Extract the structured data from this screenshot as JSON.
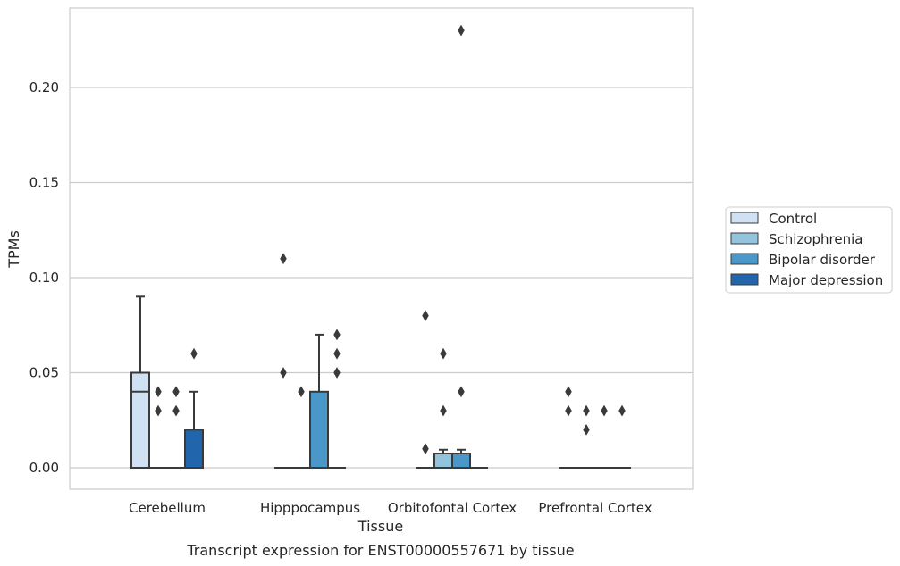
{
  "chart_data": {
    "type": "box",
    "title": "",
    "caption": "Transcript expression for ENST00000557671 by tissue",
    "xlabel": "Tissue",
    "ylabel": "TPMs",
    "ylim": [
      -0.011,
      0.242
    ],
    "yticks": [
      0.0,
      0.05,
      0.1,
      0.15,
      0.2
    ],
    "ytick_labels": [
      "0.00",
      "0.05",
      "0.10",
      "0.15",
      "0.20"
    ],
    "grid": "horizontal",
    "legend_position": "right",
    "categories": [
      "Cerebellum",
      "Hipppocampus",
      "Orbitofontal Cortex",
      "Prefrontal Cortex"
    ],
    "series": [
      {
        "name": "Control",
        "color": "#cfe1f2",
        "boxes": [
          {
            "q1": 0.0,
            "median": 0.04,
            "q3": 0.05,
            "whislo": 0.0,
            "whishi": 0.09,
            "fliers": []
          },
          {
            "q1": 0.0,
            "median": 0.0,
            "q3": 0.0,
            "whislo": 0.0,
            "whishi": 0.0,
            "fliers": [
              0.11,
              0.05
            ]
          },
          {
            "q1": 0.0,
            "median": 0.0,
            "q3": 0.0,
            "whislo": 0.0,
            "whishi": 0.0,
            "fliers": [
              0.08,
              0.01
            ]
          },
          {
            "q1": 0.0,
            "median": 0.0,
            "q3": 0.0,
            "whislo": 0.0,
            "whishi": 0.0,
            "fliers": [
              0.04,
              0.03
            ]
          }
        ]
      },
      {
        "name": "Schizophrenia",
        "color": "#93c4de",
        "boxes": [
          {
            "q1": 0.0,
            "median": 0.0,
            "q3": 0.0,
            "whislo": 0.0,
            "whishi": 0.0,
            "fliers": [
              0.04,
              0.03
            ]
          },
          {
            "q1": 0.0,
            "median": 0.0,
            "q3": 0.0,
            "whislo": 0.0,
            "whishi": 0.0,
            "fliers": [
              0.04
            ]
          },
          {
            "q1": 0.0,
            "median": 0.0,
            "q3": 0.0075,
            "whislo": 0.0,
            "whishi": 0.0095,
            "fliers": [
              0.06,
              0.03
            ]
          },
          {
            "q1": 0.0,
            "median": 0.0,
            "q3": 0.0,
            "whislo": 0.0,
            "whishi": 0.0,
            "fliers": [
              0.03,
              0.02
            ]
          }
        ]
      },
      {
        "name": "Bipolar disorder",
        "color": "#4a98c9",
        "boxes": [
          {
            "q1": 0.0,
            "median": 0.0,
            "q3": 0.0,
            "whislo": 0.0,
            "whishi": 0.0,
            "fliers": [
              0.04,
              0.03
            ]
          },
          {
            "q1": 0.0,
            "median": 0.0,
            "q3": 0.04,
            "whislo": 0.0,
            "whishi": 0.07,
            "fliers": []
          },
          {
            "q1": 0.0,
            "median": 0.0,
            "q3": 0.0075,
            "whislo": 0.0,
            "whishi": 0.0095,
            "fliers": [
              0.23,
              0.04
            ]
          },
          {
            "q1": 0.0,
            "median": 0.0,
            "q3": 0.0,
            "whislo": 0.0,
            "whishi": 0.0,
            "fliers": [
              0.03
            ]
          }
        ]
      },
      {
        "name": "Major depression",
        "color": "#2166ac",
        "boxes": [
          {
            "q1": 0.0,
            "median": 0.0,
            "q3": 0.02,
            "whislo": 0.0,
            "whishi": 0.04,
            "fliers": [
              0.06
            ]
          },
          {
            "q1": 0.0,
            "median": 0.0,
            "q3": 0.0,
            "whislo": 0.0,
            "whishi": 0.0,
            "fliers": [
              0.07,
              0.06,
              0.05
            ]
          },
          {
            "q1": 0.0,
            "median": 0.0,
            "q3": 0.0,
            "whislo": 0.0,
            "whishi": 0.0,
            "fliers": []
          },
          {
            "q1": 0.0,
            "median": 0.0,
            "q3": 0.0,
            "whislo": 0.0,
            "whishi": 0.0,
            "fliers": [
              0.03
            ]
          }
        ]
      }
    ]
  }
}
